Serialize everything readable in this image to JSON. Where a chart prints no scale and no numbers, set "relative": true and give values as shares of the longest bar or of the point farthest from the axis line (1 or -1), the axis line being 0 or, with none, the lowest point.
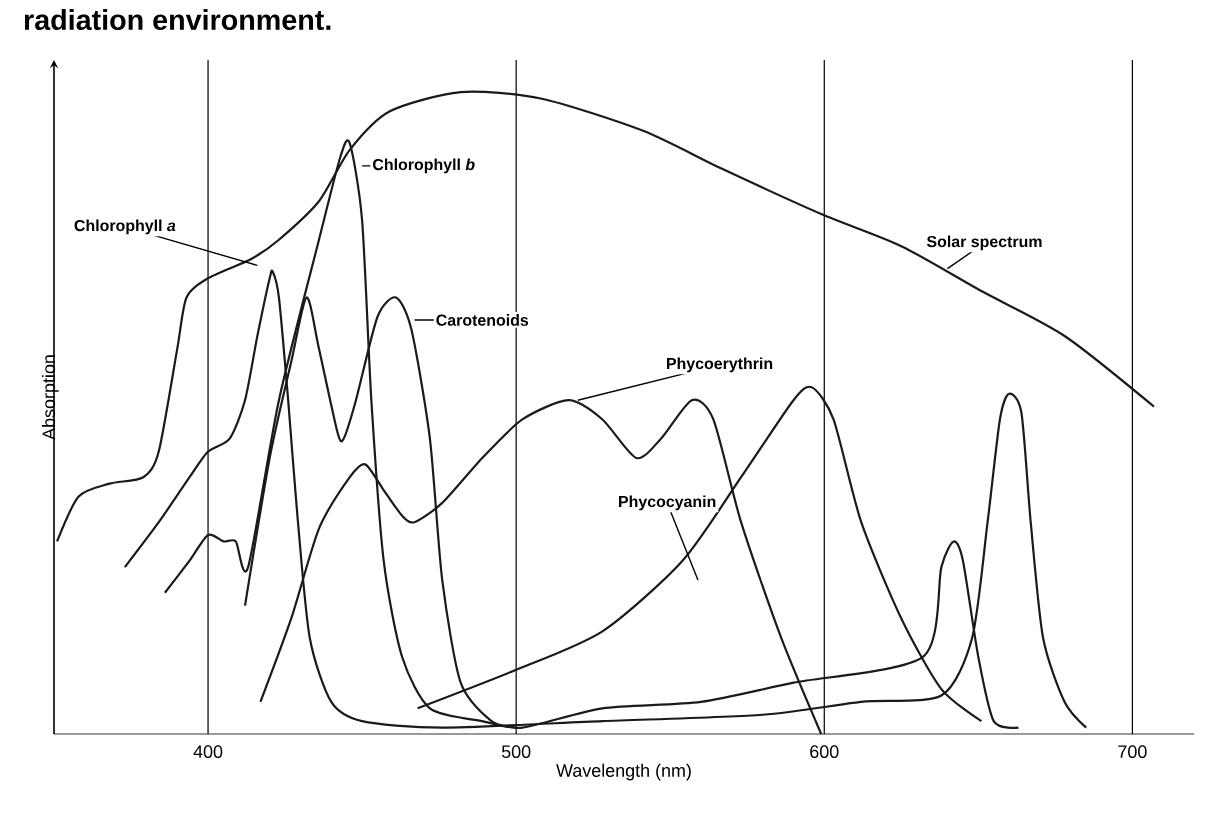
{
  "chart_data": {
    "type": "line",
    "relative": true,
    "xlabel": "Wavelength (nm)",
    "ylabel": "Absorption",
    "annotations": [
      "radiation environment."
    ],
    "xlim": [
      350,
      720
    ],
    "xticks": [
      400,
      500,
      600,
      700
    ],
    "grid": "x",
    "legend": false,
    "marker": "none",
    "line_style": "solid",
    "series": [
      {
        "name": "Solar spectrum",
        "color": "#1a1a1a",
        "x": [
          351,
          358,
          368,
          379,
          384,
          390,
          393,
          400,
          414,
          423,
          436,
          446,
          459,
          482,
          508,
          541,
          567,
          599,
          625,
          651,
          678,
          707
        ],
        "values": [
          0.3,
          0.37,
          0.39,
          0.4,
          0.44,
          0.6,
          0.68,
          0.71,
          0.74,
          0.77,
          0.83,
          0.91,
          0.97,
          1.0,
          0.99,
          0.94,
          0.88,
          0.81,
          0.76,
          0.69,
          0.62,
          0.51
        ]
      },
      {
        "name": "Chlorophyll *a*",
        "color": "#1a1a1a",
        "x": [
          373,
          384,
          394,
          400,
          407,
          412,
          416,
          420,
          421,
          423,
          426,
          429,
          433,
          440,
          450,
          476,
          528,
          580,
          612,
          638,
          648,
          653,
          657,
          660,
          664,
          667,
          671,
          678,
          685
        ],
        "values": [
          0.26,
          0.33,
          0.4,
          0.44,
          0.46,
          0.52,
          0.62,
          0.71,
          0.72,
          0.68,
          0.52,
          0.34,
          0.15,
          0.05,
          0.02,
          0.01,
          0.02,
          0.03,
          0.05,
          0.06,
          0.15,
          0.33,
          0.49,
          0.53,
          0.5,
          0.33,
          0.15,
          0.05,
          0.01
        ]
      },
      {
        "name": "Chlorophyll *b*",
        "color": "#1a1a1a",
        "x": [
          386,
          394,
          400,
          405,
          409,
          413,
          423,
          436,
          443,
          446,
          450,
          453,
          457,
          463,
          472,
          489,
          502,
          528,
          560,
          590,
          632,
          638,
          642,
          645,
          650,
          655,
          663
        ],
        "values": [
          0.22,
          0.27,
          0.31,
          0.3,
          0.3,
          0.26,
          0.52,
          0.77,
          0.9,
          0.92,
          0.8,
          0.52,
          0.27,
          0.12,
          0.04,
          0.02,
          0.01,
          0.04,
          0.05,
          0.08,
          0.12,
          0.26,
          0.3,
          0.27,
          0.12,
          0.02,
          0.01
        ]
      },
      {
        "name": "Carotenoids",
        "color": "#1a1a1a",
        "x": [
          412,
          420,
          427,
          432,
          436,
          442,
          444,
          448,
          455,
          461,
          466,
          472,
          476,
          482,
          492,
          500
        ],
        "values": [
          0.2,
          0.43,
          0.58,
          0.68,
          0.6,
          0.47,
          0.46,
          0.52,
          0.65,
          0.68,
          0.63,
          0.46,
          0.24,
          0.08,
          0.02,
          0.01
        ]
      },
      {
        "name": "Phycoerythrin",
        "color": "#1a1a1a",
        "x": [
          417,
          427,
          436,
          446,
          451,
          457,
          463,
          467,
          476,
          489,
          502,
          517,
          528,
          539,
          547,
          557,
          564,
          573,
          586,
          599
        ],
        "values": [
          0.05,
          0.18,
          0.32,
          0.4,
          0.42,
          0.38,
          0.34,
          0.33,
          0.36,
          0.43,
          0.49,
          0.52,
          0.49,
          0.43,
          0.46,
          0.52,
          0.49,
          0.33,
          0.15,
          0.0
        ]
      },
      {
        "name": "Phycocyanin",
        "color": "#1a1a1a",
        "x": [
          468,
          500,
          528,
          554,
          573,
          590,
          596,
          603,
          612,
          625,
          638,
          651
        ],
        "values": [
          0.04,
          0.1,
          0.16,
          0.27,
          0.4,
          0.52,
          0.54,
          0.49,
          0.33,
          0.18,
          0.07,
          0.02
        ]
      }
    ]
  }
}
